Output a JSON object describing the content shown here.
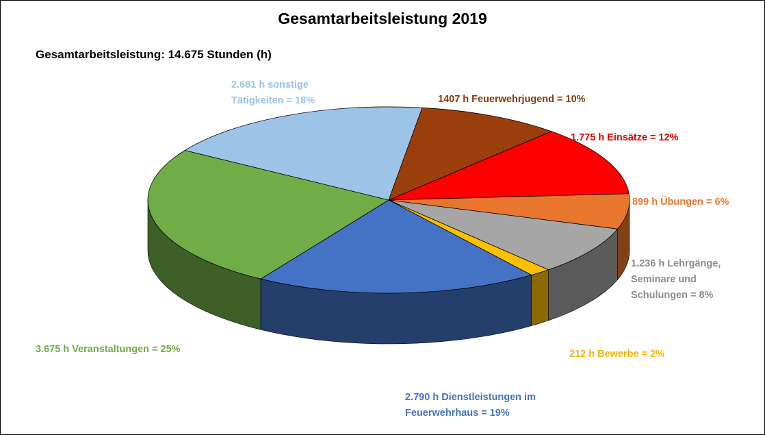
{
  "chart_data": {
    "type": "pie",
    "variant": "3d",
    "title": "Gesamtarbeitsleistung 2019",
    "subtitle": "Gesamtarbeitsleistung: 14.675 Stunden (h)",
    "unit": "h",
    "total": 14675,
    "slices": [
      {
        "name": "Feuerwehrjugend",
        "value": 1407,
        "percent": 10,
        "color": "#9a3f0c",
        "label_lines": [
          "1407 h Feuerwehrjugend = 10%"
        ]
      },
      {
        "name": "Einsätze",
        "value": 1775,
        "percent": 12,
        "color": "#ff0000",
        "label_lines": [
          "1.775 h Einsätze = 12%"
        ]
      },
      {
        "name": "Übungen",
        "value": 899,
        "percent": 6,
        "color": "#e8762e",
        "label_lines": [
          "899 h Übungen = 6%"
        ]
      },
      {
        "name": "Lehrgänge, Seminare und Schulungen",
        "value": 1236,
        "percent": 8,
        "color": "#a6a6a6",
        "label_lines": [
          "1.236 h Lehrgänge,",
          "Seminare und",
          "Schulungen = 8%"
        ]
      },
      {
        "name": "Bewerbe",
        "value": 212,
        "percent": 2,
        "color": "#ffc000",
        "label_lines": [
          "212 h Bewerbe = 2%"
        ]
      },
      {
        "name": "Dienstleistungen im Feuerwehrhaus",
        "value": 2790,
        "percent": 19,
        "color": "#4472c4",
        "label_lines": [
          "2.790 h Dienstleistungen im",
          "Feuerwehrhaus = 19%"
        ]
      },
      {
        "name": "Veranstaltungen",
        "value": 3675,
        "percent": 25,
        "color": "#70ad47",
        "label_lines": [
          "3.675 h Veranstaltungen = 25%"
        ]
      },
      {
        "name": "sonstige Tätigkeiten",
        "value": 2681,
        "percent": 18,
        "color": "#9dc3e6",
        "label_lines": [
          "2.681 h sonstige",
          "Tätigkeiten = 18%"
        ]
      }
    ],
    "label_colors": [
      "#843c0c",
      "#e00000",
      "#e8762e",
      "#8c8c8c",
      "#f0b400",
      "#4472c4",
      "#70ad47",
      "#9dc3e6"
    ]
  }
}
